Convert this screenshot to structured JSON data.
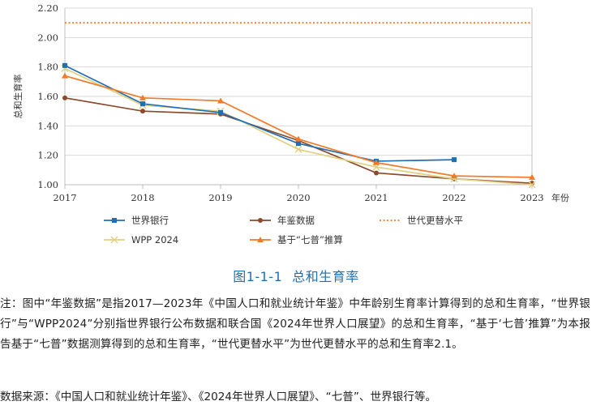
{
  "chart_data": {
    "type": "line",
    "ylabel": "总和生育率",
    "xlabel": "年份",
    "x": [
      2017,
      2018,
      2019,
      2020,
      2021,
      2022,
      2023
    ],
    "x_tick_labels": [
      "2017",
      "2018",
      "2019",
      "2020",
      "2021",
      "2022",
      "2023"
    ],
    "ylim": [
      1.0,
      2.2
    ],
    "y_ticks": [
      "1.00",
      "1.20",
      "1.40",
      "1.60",
      "1.80",
      "2.00",
      "2.20"
    ],
    "grid": true,
    "series": [
      {
        "name": "世界银行",
        "color": "#1f6fb5",
        "marker": "square",
        "style": "solid",
        "values": [
          1.81,
          1.55,
          1.49,
          1.28,
          1.16,
          1.17,
          null
        ]
      },
      {
        "name": "年鉴数据",
        "color": "#8b4a2b",
        "marker": "circle",
        "style": "solid",
        "values": [
          1.59,
          1.5,
          1.48,
          1.3,
          1.08,
          1.04,
          1.01
        ]
      },
      {
        "name": "世代更替水平",
        "color": "#f07a2a",
        "marker": "none",
        "style": "dotted",
        "values": [
          2.1,
          2.1,
          2.1,
          2.1,
          2.1,
          2.1,
          2.1
        ]
      },
      {
        "name": "WPP 2024",
        "color": "#e0d080",
        "marker": "x",
        "style": "solid",
        "values": [
          1.79,
          1.54,
          1.5,
          1.24,
          1.12,
          1.04,
          1.0
        ]
      },
      {
        "name": "基于“七普”推算",
        "color": "#f07a2a",
        "marker": "triangle",
        "style": "solid",
        "values": [
          1.74,
          1.59,
          1.57,
          1.31,
          1.15,
          1.06,
          1.05
        ]
      }
    ]
  },
  "caption": {
    "figure_no": "图1-1-1",
    "title": "总和生育率"
  },
  "note": "注：图中“年鉴数据”是指2017—2023年《中国人口和就业统计年鉴》中年龄别生育率计算得到的总和生育率，“世界银行”与“WPP2024”分别指世界银行公布数据和联合国《2024年世界人口展望》的总和生育率，“基于‘七普’推算”为本报告基于“七普”数据测算得到的总和生育率，“世代更替水平”为世代更替水平的总和生育率2.1。",
  "source": "数据来源：《中国人口和就业统计年鉴》、《2024年世界人口展望》、“七普”、世界银行等。"
}
